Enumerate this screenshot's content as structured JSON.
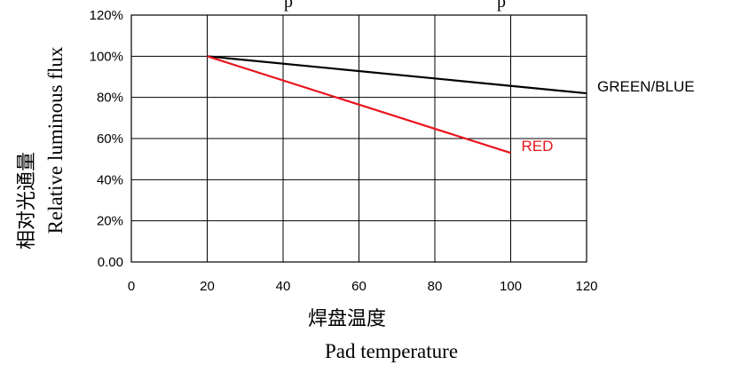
{
  "chart_data": {
    "type": "line",
    "top_text": "p                                              p",
    "ylabel_cn": "相对光通量",
    "ylabel_en": "Relative luminous flux",
    "xlabel_cn": "焊盘温度",
    "xlabel_en": "Pad temperature",
    "xlim": [
      0,
      120
    ],
    "ylim": [
      0,
      120
    ],
    "x_ticks": [
      0,
      20,
      40,
      60,
      80,
      100,
      120
    ],
    "x_tick_labels": [
      "0",
      "20",
      "40",
      "60",
      "80",
      "100",
      "120"
    ],
    "y_ticks": [
      0,
      20,
      40,
      60,
      80,
      100,
      120
    ],
    "y_tick_labels": [
      "0.00",
      "20%",
      "40%",
      "60%",
      "80%",
      "100%",
      "120%"
    ],
    "grid": true,
    "series": [
      {
        "name": "GREEN/BLUE",
        "color": "#000000",
        "x": [
          20,
          120
        ],
        "y": [
          100,
          82
        ]
      },
      {
        "name": "RED",
        "color": "#e8141c",
        "x": [
          20,
          100
        ],
        "y": [
          100,
          53
        ]
      }
    ]
  }
}
